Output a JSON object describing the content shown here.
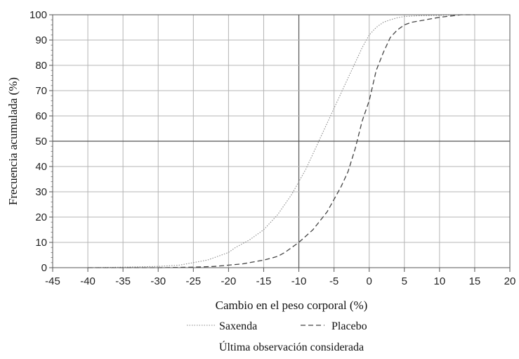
{
  "chart_data": {
    "type": "line",
    "xlabel": "Cambio en el peso corporal (%)",
    "ylabel": "Frecuencia acumulada (%)",
    "xlim": [
      -45,
      20
    ],
    "ylim": [
      0,
      100
    ],
    "x_ticks": [
      -45,
      -40,
      -35,
      -30,
      -25,
      -20,
      -15,
      -10,
      -5,
      0,
      5,
      10,
      15,
      20
    ],
    "y_ticks": [
      0,
      10,
      20,
      30,
      40,
      50,
      60,
      70,
      80,
      90,
      100
    ],
    "grid": true,
    "legend_position": "bottom",
    "footnote": "Última observación considerada",
    "series": [
      {
        "name": "Saxenda",
        "style": "dotted",
        "color": "#8a8a8a",
        "x": [
          -40,
          -35,
          -30,
          -27,
          -25,
          -23,
          -21,
          -20,
          -19,
          -18,
          -17,
          -16,
          -15,
          -14,
          -13,
          -12,
          -11,
          -10,
          -9,
          -8,
          -7,
          -6,
          -5,
          -4,
          -3,
          -2,
          -1,
          0,
          1,
          2,
          3,
          4,
          5,
          7,
          10,
          13,
          17
        ],
        "y": [
          0,
          0.2,
          0.5,
          1,
          2,
          3,
          5,
          6,
          8,
          9.5,
          11,
          13,
          15,
          18,
          21,
          25,
          29,
          34,
          39,
          45,
          51,
          57,
          63,
          69,
          75,
          81,
          87,
          92,
          95,
          97,
          98,
          98.8,
          99.3,
          99.6,
          99.8,
          100,
          100
        ]
      },
      {
        "name": "Placebo",
        "style": "dashed",
        "color": "#444444",
        "x": [
          -40,
          -30,
          -25,
          -22,
          -20,
          -18,
          -17,
          -16,
          -15,
          -14,
          -13,
          -12,
          -11,
          -10,
          -9,
          -8,
          -7,
          -6,
          -5,
          -4,
          -3,
          -2,
          -1,
          0,
          1,
          2,
          3,
          4,
          5,
          6,
          8,
          10,
          12,
          13,
          15
        ],
        "y": [
          0,
          0,
          0.2,
          0.5,
          1,
          1.5,
          2,
          2.5,
          3,
          3.7,
          4.5,
          6,
          8,
          10,
          12.5,
          15,
          18.5,
          22,
          27,
          32,
          38,
          47,
          58,
          66,
          78,
          85,
          91,
          94,
          96,
          97,
          98,
          99,
          99.6,
          100,
          100
        ]
      }
    ]
  }
}
